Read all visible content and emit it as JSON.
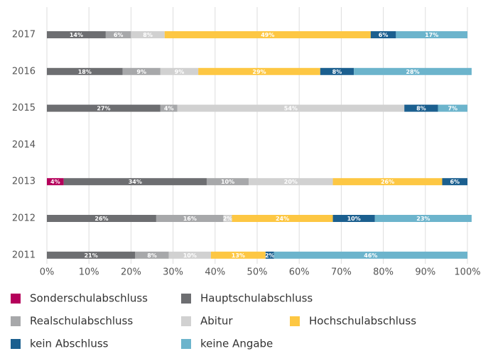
{
  "chart_data": {
    "type": "stacked-barh",
    "categories": [
      "2017",
      "2016",
      "2015",
      "2014",
      "2013",
      "2012",
      "2011"
    ],
    "series": [
      {
        "name": "Sonderschulabschluss",
        "color": "#b5005b",
        "values": [
          null,
          null,
          null,
          null,
          4,
          null,
          null
        ],
        "value_labels": [
          null,
          null,
          null,
          null,
          "4%",
          null,
          null
        ]
      },
      {
        "name": "Hauptschulabschluss",
        "color": "#6d6e71",
        "values": [
          14,
          18,
          27,
          null,
          34,
          26,
          21
        ],
        "value_labels": [
          "14%",
          "18%",
          "27%",
          null,
          "34%",
          "26%",
          "21%"
        ]
      },
      {
        "name": "Realschulabschluss",
        "color": "#a7a8aa",
        "values": [
          6,
          9,
          4,
          null,
          10,
          16,
          8
        ],
        "value_labels": [
          "6%",
          "9%",
          "4%",
          null,
          "10%",
          "16%",
          "8%"
        ]
      },
      {
        "name": "Abitur",
        "color": "#d1d1d1",
        "values": [
          8,
          9,
          54,
          null,
          20,
          2,
          10
        ],
        "value_labels": [
          "8%",
          "9%",
          "54%",
          null,
          "20%",
          "2%",
          "10%"
        ]
      },
      {
        "name": "Hochschulabschluss",
        "color": "#fdc743",
        "values": [
          49,
          29,
          null,
          null,
          26,
          24,
          13
        ],
        "value_labels": [
          "49%",
          "29%",
          null,
          null,
          "26%",
          "24%",
          "13%"
        ]
      },
      {
        "name": "kein Abschluss",
        "color": "#1b5f8f",
        "values": [
          6,
          8,
          8,
          null,
          6,
          10,
          2
        ],
        "value_labels": [
          "6%",
          "8%",
          "8%",
          null,
          "6%",
          "10%",
          "2%"
        ]
      },
      {
        "name": "keine Angabe",
        "color": "#6cb4cc",
        "values": [
          17,
          28,
          7,
          null,
          null,
          23,
          46
        ],
        "value_labels": [
          "17%",
          "28%",
          "7%",
          null,
          null,
          "23%",
          "46%"
        ]
      }
    ],
    "xlim": [
      0,
      100
    ],
    "xticks": [
      {
        "value": 0,
        "label": "0%"
      },
      {
        "value": 10,
        "label": "10%"
      },
      {
        "value": 20,
        "label": "20%"
      },
      {
        "value": 30,
        "label": "30%"
      },
      {
        "value": 40,
        "label": "40%"
      },
      {
        "value": 50,
        "label": "50%"
      },
      {
        "value": 60,
        "label": "60%"
      },
      {
        "value": 70,
        "label": "70%"
      },
      {
        "value": 80,
        "label": "80%"
      },
      {
        "value": 90,
        "label": "90%"
      },
      {
        "value": 100,
        "label": "100%"
      }
    ],
    "grid": true
  }
}
